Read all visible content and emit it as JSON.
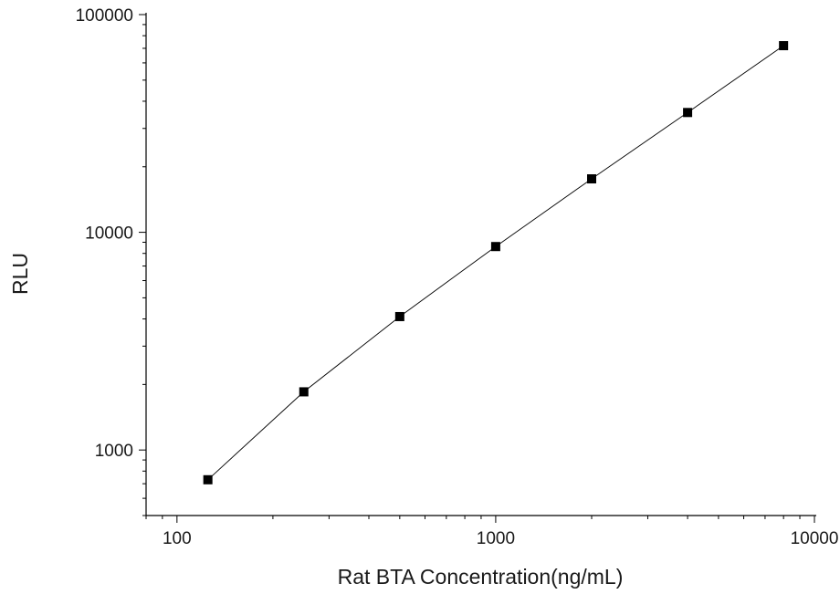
{
  "chart_data": {
    "type": "scatter",
    "xlabel": "Rat BTA Concentration(ng/mL)",
    "ylabel": "RLU",
    "x_scale": "log",
    "y_scale": "log",
    "xlim": [
      80,
      10000
    ],
    "ylim": [
      500,
      100000
    ],
    "x_major_ticks": [
      100,
      1000,
      10000
    ],
    "x_tick_labels": [
      "100",
      "1000",
      "10000"
    ],
    "y_major_ticks": [
      1000,
      10000,
      100000
    ],
    "y_tick_labels": [
      "1000",
      "10000",
      "100000"
    ],
    "grid": false,
    "legend": "none",
    "line_connects_points": true,
    "series": [
      {
        "x": [
          125,
          250,
          500,
          1000,
          2000,
          4000,
          8000
        ],
        "y": [
          730,
          1850,
          4100,
          8600,
          17600,
          35500,
          72000
        ],
        "marker": "square",
        "color": "#000000"
      }
    ]
  }
}
